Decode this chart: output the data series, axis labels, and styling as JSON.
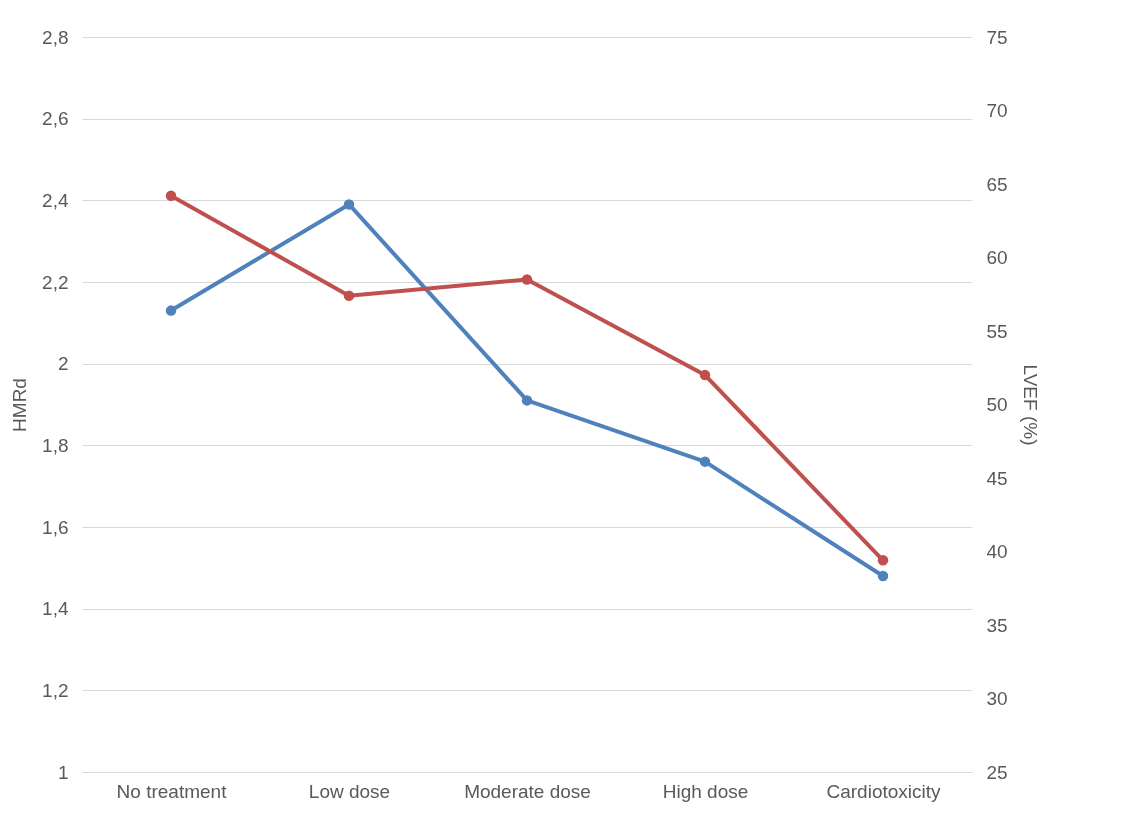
{
  "chart_data": {
    "type": "line",
    "ylabel": "HMRd",
    "y2label": "LVEF (%)",
    "categories": [
      "No treatment",
      "Low dose",
      "Moderate dose",
      "High dose",
      "Cardiotoxicity"
    ],
    "series": [
      {
        "color": "#4f81bd",
        "values": [
          2.13,
          2.39,
          1.91,
          1.76,
          1.48
        ]
      },
      {
        "color": "#c0504d",
        "axis": "y2",
        "values": [
          64.2,
          57.4,
          58.5,
          52.0,
          39.4
        ]
      }
    ],
    "ylim": [
      1,
      2.8
    ],
    "yticks": [
      1,
      {
        "value": 1.2,
        "label": "1,2"
      },
      {
        "value": 1.4,
        "label": "1,4"
      },
      {
        "value": 1.6,
        "label": "1,6"
      },
      {
        "value": 1.8,
        "label": "1,8"
      },
      2,
      {
        "value": 2.2,
        "label": "2,2"
      },
      {
        "value": 2.4,
        "label": "2,4"
      },
      {
        "value": 2.6,
        "label": "2,6"
      },
      {
        "value": 2.8,
        "label": "2,8"
      }
    ],
    "y2lim": [
      25,
      75
    ],
    "y2ticks": [
      25,
      30,
      35,
      40,
      45,
      50,
      55,
      60,
      65,
      70,
      75
    ],
    "grid": "y",
    "marker": "circle",
    "line_style": "solid"
  }
}
